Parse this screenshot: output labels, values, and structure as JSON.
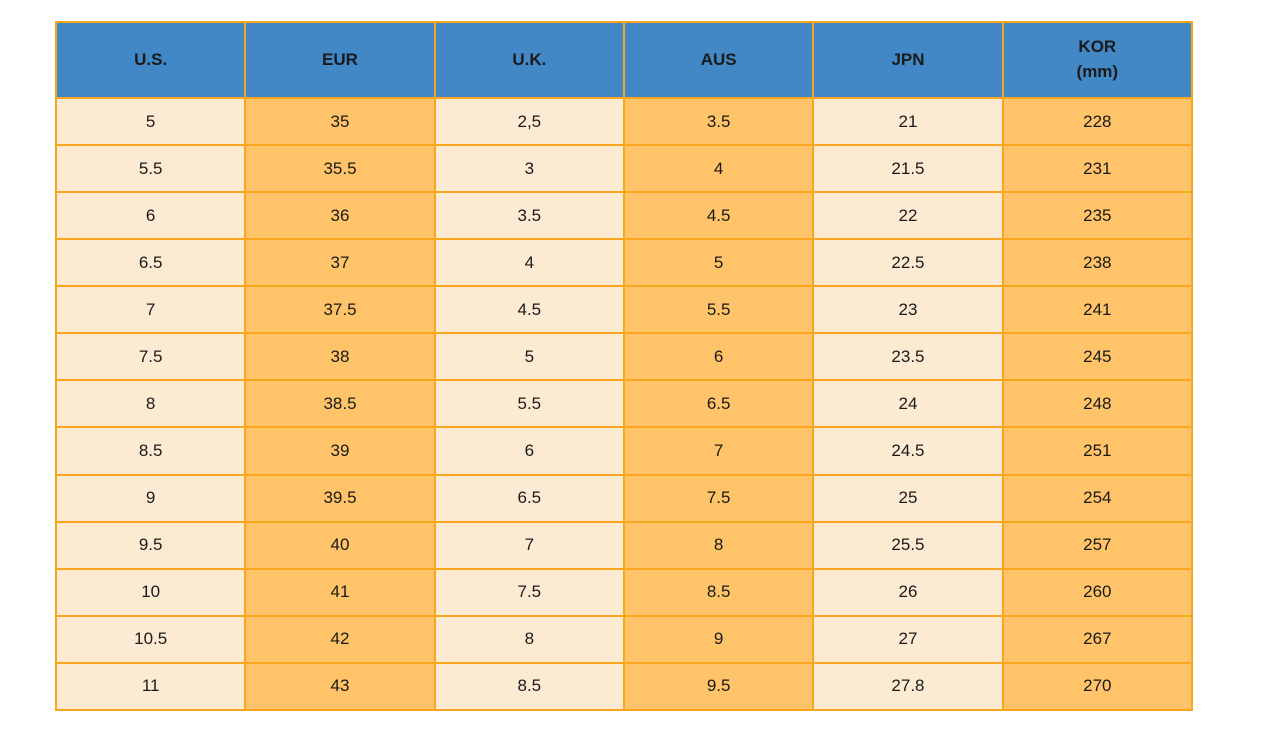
{
  "colors": {
    "page-bg": "#FFFFFF",
    "header-bg": "#4288C6",
    "header-text": "#1A1A1A",
    "cell-text": "#1A1A1A",
    "odd-col-bg": "#FDEAD2",
    "even-col-bg": "#FFC369",
    "border": "#F9A51D"
  },
  "table": {
    "columns": [
      {
        "label": "U.S."
      },
      {
        "label": "EUR"
      },
      {
        "label": "U.K."
      },
      {
        "label": "AUS"
      },
      {
        "label": "JPN"
      },
      {
        "label": "KOR",
        "sublabel": "(mm)"
      }
    ],
    "rows": [
      [
        "5",
        "35",
        "2,5",
        "3.5",
        "21",
        "228"
      ],
      [
        "5.5",
        "35.5",
        "3",
        "4",
        "21.5",
        "231"
      ],
      [
        "6",
        "36",
        "3.5",
        "4.5",
        "22",
        "235"
      ],
      [
        "6.5",
        "37",
        "4",
        "5",
        "22.5",
        "238"
      ],
      [
        "7",
        "37.5",
        "4.5",
        "5.5",
        "23",
        "241"
      ],
      [
        "7.5",
        "38",
        "5",
        "6",
        "23.5",
        "245"
      ],
      [
        "8",
        "38.5",
        "5.5",
        "6.5",
        "24",
        "248"
      ],
      [
        "8.5",
        "39",
        "6",
        "7",
        "24.5",
        "251"
      ],
      [
        "9",
        "39.5",
        "6.5",
        "7.5",
        "25",
        "254"
      ],
      [
        "9.5",
        "40",
        "7",
        "8",
        "25.5",
        "257"
      ],
      [
        "10",
        "41",
        "7.5",
        "8.5",
        "26",
        "260"
      ],
      [
        "10.5",
        "42",
        "8",
        "9",
        "27",
        "267"
      ],
      [
        "11",
        "43",
        "8.5",
        "9.5",
        "27.8",
        "270"
      ]
    ]
  }
}
